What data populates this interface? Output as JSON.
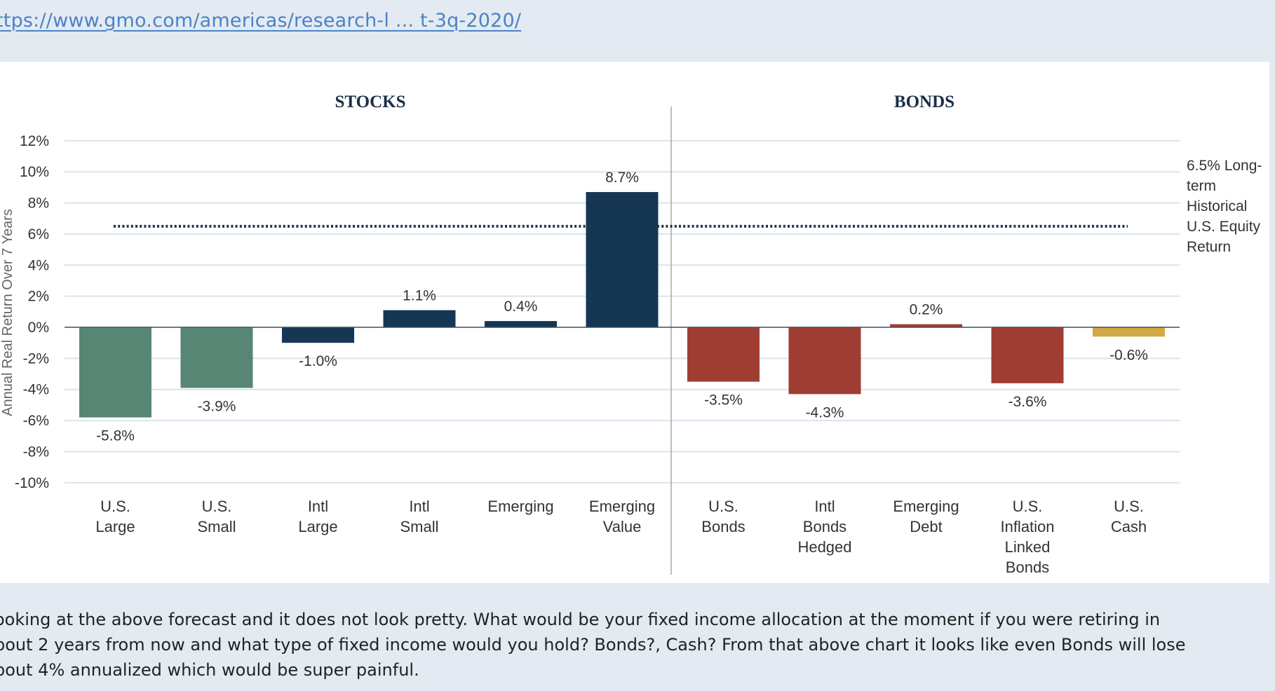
{
  "link": {
    "text": "ttps://www.gmo.com/americas/research-l ... t-3q-2020/"
  },
  "post": {
    "lines": [
      "ooking at the above forecast and it does not look pretty. What would be your fixed income allocation at the moment if you were retiring in",
      "bout 2 years from now and what type of fixed income would you hold? Bonds?, Cash? From that above chart it looks like even Bonds will lose",
      "bout 4% annualized which would be super painful."
    ]
  },
  "colors": {
    "us_equity": "#588675",
    "intl_equity": "#163754",
    "bonds": "#a03d33",
    "cash": "#d4a944",
    "grid": "#d7e4ef",
    "link": "#4a82c8"
  },
  "chart_data": {
    "type": "bar",
    "title": "",
    "groups": [
      {
        "label": "STOCKS",
        "categories": [
          0,
          1,
          2,
          3,
          4,
          5
        ]
      },
      {
        "label": "BONDS",
        "categories": [
          6,
          7,
          8,
          9,
          10
        ]
      }
    ],
    "categories": [
      [
        "U.S.",
        "Large"
      ],
      [
        "U.S.",
        "Small"
      ],
      [
        "Intl",
        "Large"
      ],
      [
        "Intl",
        "Small"
      ],
      [
        "Emerging"
      ],
      [
        "Emerging",
        "Value"
      ],
      [
        "U.S.",
        "Bonds"
      ],
      [
        "Intl",
        "Bonds",
        "Hedged"
      ],
      [
        "Emerging",
        "Debt"
      ],
      [
        "U.S.",
        "Inflation",
        "Linked",
        "Bonds"
      ],
      [
        "U.S.",
        "Cash"
      ]
    ],
    "values": [
      -5.8,
      -3.9,
      -1.0,
      1.1,
      0.4,
      8.7,
      -3.5,
      -4.3,
      0.2,
      -3.6,
      -0.6
    ],
    "value_labels": [
      "-5.8%",
      "-3.9%",
      "-1.0%",
      "1.1%",
      "0.4%",
      "8.7%",
      "-3.5%",
      "-4.3%",
      "0.2%",
      "-3.6%",
      "-0.6%"
    ],
    "bar_color_keys": [
      "us_equity",
      "us_equity",
      "intl_equity",
      "intl_equity",
      "intl_equity",
      "intl_equity",
      "bonds",
      "bonds",
      "bonds",
      "bonds",
      "cash"
    ],
    "xlabel": "",
    "ylabel": "Annual Real Return Over 7 Years",
    "ylim": [
      -10,
      12
    ],
    "yticks": [
      12,
      10,
      8,
      6,
      4,
      2,
      0,
      -2,
      -4,
      -6,
      -8,
      -10
    ],
    "ytick_labels": [
      "12%",
      "10%",
      "8%",
      "6%",
      "4%",
      "2%",
      "0%",
      "-2%",
      "-4%",
      "-6%",
      "-8%",
      "-10%"
    ],
    "grid": true,
    "reference_line": {
      "value": 6.5,
      "style": "dotted",
      "label": [
        "6.5% Long-",
        "term",
        "Historical",
        "U.S. Equity",
        "Return"
      ]
    }
  }
}
